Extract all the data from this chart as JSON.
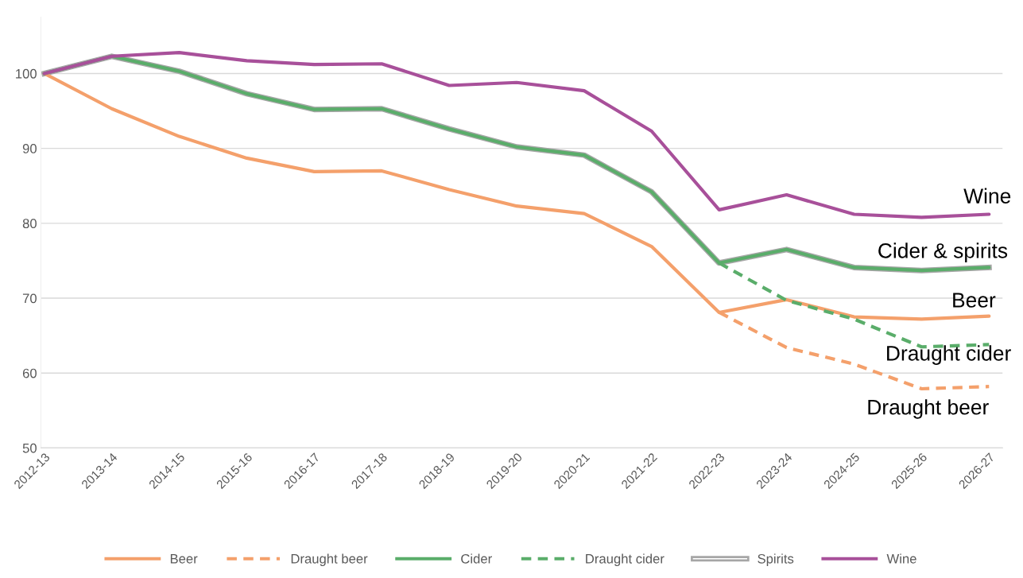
{
  "chart_data": {
    "type": "line",
    "categories": [
      "2012-13",
      "2013-14",
      "2014-15",
      "2015-16",
      "2016-17",
      "2017-18",
      "2018-19",
      "2019-20",
      "2020-21",
      "2021-22",
      "2022-23",
      "2023-24",
      "2024-25",
      "2025-26",
      "2026-27"
    ],
    "series": [
      {
        "name": "Beer",
        "color": "#f4a06b",
        "line_style": "solid",
        "values": [
          100,
          95.3,
          91.6,
          88.7,
          86.9,
          87.0,
          84.5,
          82.3,
          81.3,
          76.9,
          68.1,
          69.8,
          67.5,
          67.2,
          67.6
        ]
      },
      {
        "name": "Draught beer",
        "color": "#f4a06b",
        "line_style": "dashed",
        "values": [
          null,
          null,
          null,
          null,
          null,
          null,
          null,
          null,
          null,
          null,
          68.1,
          63.4,
          61.2,
          57.9,
          58.2
        ]
      },
      {
        "name": "Cider",
        "color": "#5aad6a",
        "line_style": "solid",
        "values": [
          100,
          102.3,
          100.3,
          97.3,
          95.2,
          95.3,
          92.6,
          90.2,
          89.1,
          84.2,
          74.7,
          76.5,
          74.1,
          73.7,
          74.1
        ]
      },
      {
        "name": "Draught cider",
        "color": "#5aad6a",
        "line_style": "dashed",
        "values": [
          null,
          null,
          null,
          null,
          null,
          null,
          null,
          null,
          null,
          null,
          74.7,
          69.7,
          67.2,
          63.5,
          63.8
        ]
      },
      {
        "name": "Spirits",
        "color": "#a6a6a6",
        "line_style": "solid",
        "values": [
          100,
          102.3,
          100.3,
          97.3,
          95.2,
          95.3,
          92.6,
          90.2,
          89.1,
          84.2,
          74.7,
          76.5,
          74.1,
          73.7,
          74.1
        ]
      },
      {
        "name": "Wine",
        "color": "#a8509a",
        "line_style": "solid",
        "values": [
          100,
          102.3,
          102.8,
          101.7,
          101.2,
          101.3,
          98.4,
          98.8,
          97.7,
          92.3,
          81.8,
          83.8,
          81.2,
          80.8,
          81.2
        ]
      }
    ],
    "ylim": [
      50,
      107.5
    ],
    "yticks": [
      50,
      60,
      70,
      80,
      90,
      100
    ],
    "grid": "y",
    "legend": "bottom",
    "marker": "none",
    "annotations": [
      "Wine",
      "Cider & spirits",
      "Beer",
      "Draught cider",
      "Draught beer"
    ]
  }
}
